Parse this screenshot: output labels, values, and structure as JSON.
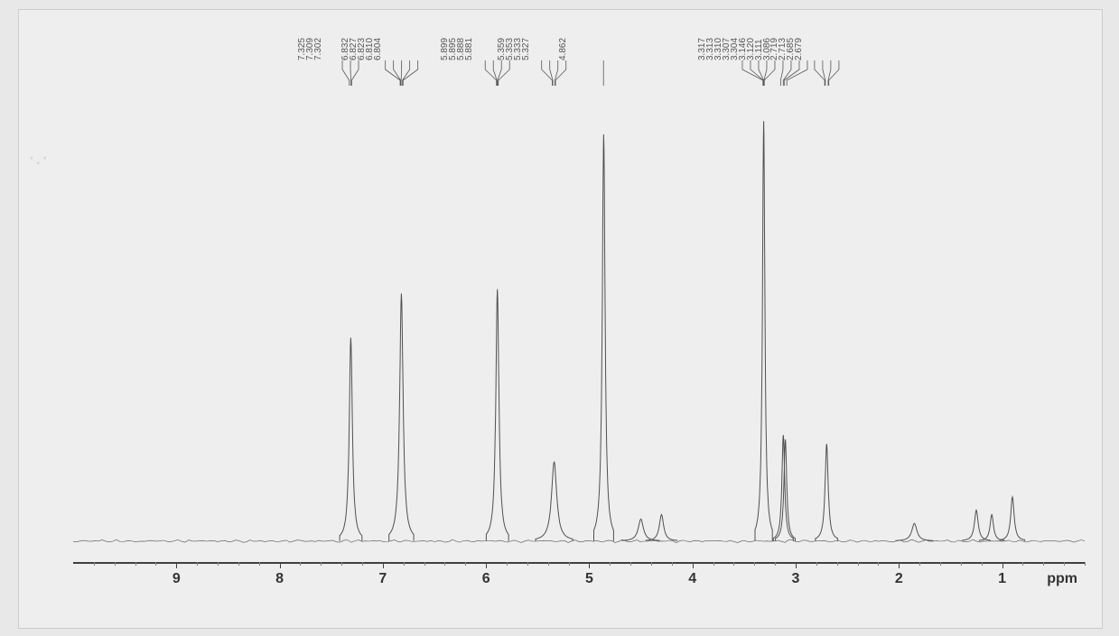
{
  "nmr_spectrum": {
    "type": "nmr-1d",
    "background_color": "#eeeeee",
    "line_color": "#505050",
    "line_width": 1,
    "axis_color": "#404040",
    "label_color": "#333333",
    "tick_fontsize": 16,
    "peak_label_fontsize": 10,
    "peak_label_color": "#555555",
    "x_axis": {
      "label": "ppm",
      "min": 0.2,
      "max": 10.0,
      "major_ticks": [
        9,
        8,
        7,
        6,
        5,
        4,
        3,
        2,
        1
      ],
      "minor_step": 0.2,
      "direction": "rtl"
    },
    "baseline_y": 0.04,
    "peak_labels": [
      "7.325",
      "7.309",
      "7.302",
      "6.832",
      "6.827",
      "6.823",
      "6.810",
      "6.804",
      "5.899",
      "5.895",
      "5.888",
      "5.881",
      "5.359",
      "5.353",
      "5.333",
      "5.327",
      "4.862",
      "3.317",
      "3.313",
      "3.310",
      "3.307",
      "3.304",
      "3.146",
      "3.120",
      "3.111",
      "3.086",
      "2.719",
      "2.713",
      "2.685",
      "2.679"
    ],
    "peaks": [
      {
        "ppm": 7.31,
        "height": 0.46,
        "width": 0.018,
        "shape": "single"
      },
      {
        "ppm": 6.82,
        "height": 0.56,
        "width": 0.02,
        "shape": "single"
      },
      {
        "ppm": 5.89,
        "height": 0.57,
        "width": 0.018,
        "shape": "single"
      },
      {
        "ppm": 5.34,
        "height": 0.18,
        "width": 0.03,
        "shape": "multiplet"
      },
      {
        "ppm": 4.86,
        "height": 0.92,
        "width": 0.016,
        "shape": "single"
      },
      {
        "ppm": 4.5,
        "height": 0.05,
        "width": 0.03,
        "shape": "tiny"
      },
      {
        "ppm": 4.3,
        "height": 0.06,
        "width": 0.025,
        "shape": "tiny"
      },
      {
        "ppm": 3.31,
        "height": 0.95,
        "width": 0.014,
        "shape": "single"
      },
      {
        "ppm": 3.12,
        "height": 0.24,
        "width": 0.016,
        "shape": "doublet"
      },
      {
        "ppm": 3.1,
        "height": 0.23,
        "width": 0.016,
        "shape": "doublet"
      },
      {
        "ppm": 2.7,
        "height": 0.22,
        "width": 0.018,
        "shape": "single"
      },
      {
        "ppm": 1.85,
        "height": 0.04,
        "width": 0.03,
        "shape": "tiny"
      },
      {
        "ppm": 1.25,
        "height": 0.07,
        "width": 0.022,
        "shape": "tiny"
      },
      {
        "ppm": 1.1,
        "height": 0.06,
        "width": 0.02,
        "shape": "tiny"
      },
      {
        "ppm": 0.9,
        "height": 0.1,
        "width": 0.02,
        "shape": "tiny"
      }
    ]
  }
}
